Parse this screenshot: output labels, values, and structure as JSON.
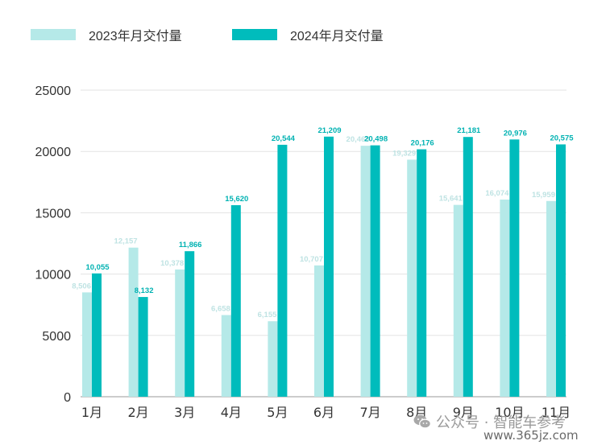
{
  "chart_data": {
    "type": "bar",
    "categories": [
      "1月",
      "2月",
      "3月",
      "4月",
      "5月",
      "6月",
      "7月",
      "8月",
      "9月",
      "10月",
      "11月"
    ],
    "series": [
      {
        "name": "2023年月交付量",
        "color": "#b5e9e8",
        "values": [
          8506,
          12157,
          10378,
          6658,
          6155,
          10707,
          20463,
          19329,
          15641,
          16074,
          15959
        ],
        "labels": [
          "8,506",
          "12,157",
          "10,378",
          "6,658",
          "6,155",
          "10,707",
          "20,463",
          "19,329",
          "15,641",
          "16,074",
          "15,959"
        ]
      },
      {
        "name": "2024年月交付量",
        "color": "#00bcbc",
        "values": [
          10055,
          8132,
          11866,
          15620,
          20544,
          21209,
          20498,
          20176,
          21181,
          20976,
          20575
        ],
        "labels": [
          "10,055",
          "8,132",
          "11,866",
          "15,620",
          "20,544",
          "21,209",
          "20,498",
          "20,176",
          "21,181",
          "20,976",
          "20,575"
        ]
      }
    ],
    "ylim": [
      0,
      25000
    ],
    "yticks": [
      "0",
      "5000",
      "10000",
      "15000",
      "20000",
      "25000"
    ],
    "grid": true,
    "legend_position": "top-left"
  },
  "watermark": {
    "line1": "公众号 · 智能车参考",
    "line2": "www.365jz.com",
    "icon": "wechat-icon"
  }
}
